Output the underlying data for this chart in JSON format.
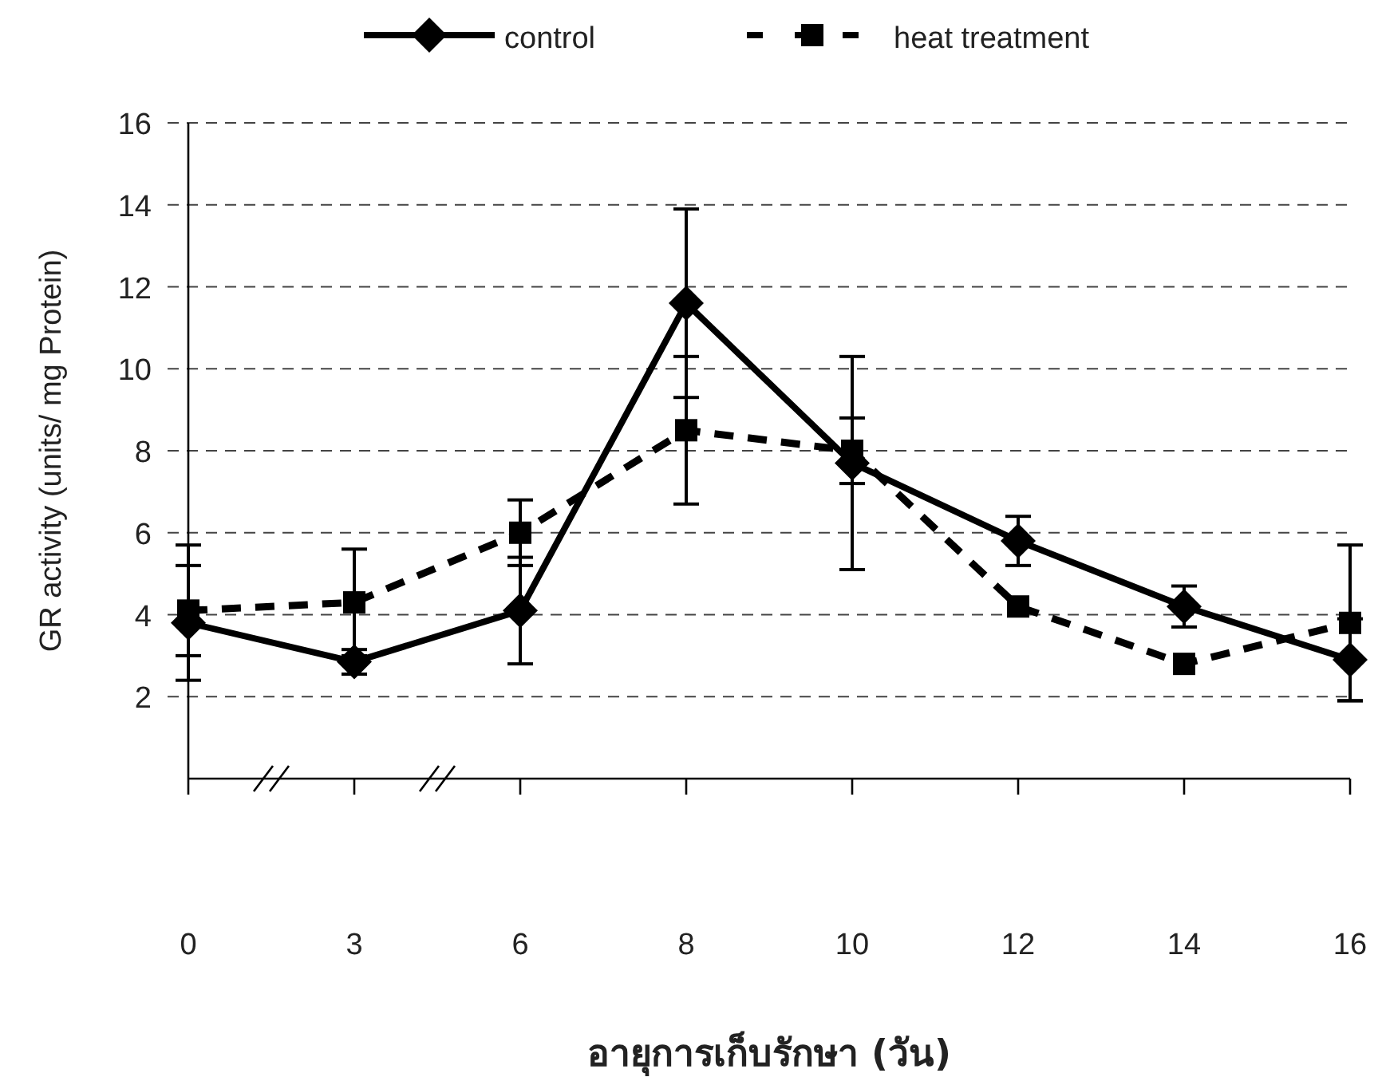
{
  "chart_data": {
    "type": "line",
    "xlabel": "อายุการเก็บรักษา (วัน)",
    "ylabel": "GR activity (units/ mg Protein)",
    "categories": [
      "0",
      "3",
      "6",
      "8",
      "10",
      "12",
      "14",
      "16"
    ],
    "series": [
      {
        "name": "control",
        "color": "#000000",
        "marker": "diamond",
        "line_style": "solid",
        "values": [
          3.8,
          2.85,
          4.1,
          11.6,
          7.7,
          5.8,
          4.2,
          2.9
        ],
        "errors": [
          [
            2.4,
            5.7
          ],
          0.3,
          1.3,
          2.3,
          2.6,
          0.6,
          0.5,
          1.0
        ]
      },
      {
        "name": "heat treatment",
        "color": "#000000",
        "marker": "square",
        "line_style": "dashed",
        "values": [
          4.1,
          4.3,
          6.0,
          8.5,
          8.0,
          4.2,
          2.8,
          3.8
        ],
        "errors": [
          1.1,
          1.3,
          0.8,
          1.8,
          0.8,
          null,
          null,
          1.9
        ]
      }
    ],
    "ylim": [
      0,
      16
    ],
    "yticks": [
      2,
      4,
      6,
      8,
      10,
      12,
      14,
      16
    ],
    "grid": "y",
    "legend": "top"
  }
}
